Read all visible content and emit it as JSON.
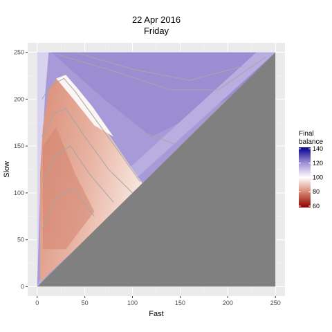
{
  "chart_data": {
    "type": "heatmap",
    "title": "22 Apr 2016",
    "subtitle": "Friday",
    "xlabel": "Fast",
    "ylabel": "Slow",
    "xlim": [
      -10,
      260
    ],
    "ylim": [
      -10,
      260
    ],
    "x_ticks": [
      0,
      50,
      100,
      150,
      200,
      250
    ],
    "y_ticks": [
      0,
      50,
      100,
      150,
      200,
      250
    ],
    "grid": true,
    "domain": "upper triangle (slow > fast), lower triangle masked grey",
    "legend": {
      "title_lines": [
        "Final",
        "balance"
      ],
      "position": "right",
      "range": [
        58,
        142
      ],
      "ticks": [
        60,
        80,
        100,
        120,
        140
      ],
      "colors": {
        "low": "#8b0000",
        "mid": "#ffffff",
        "high": "#00008b"
      },
      "midpoint": 100
    },
    "zones": [
      {
        "region": "fast small, slow 0-120",
        "approx_value": 88
      },
      {
        "region": "fast 20-70, slow 110-200",
        "approx_value": 93
      },
      {
        "region": "ridge near fast 40-80, slow 170-220",
        "approx_value": 100
      },
      {
        "region": "upper band slow 200-250",
        "approx_value": 118
      },
      {
        "region": "diagonal band near slow = fast",
        "approx_value": 110
      }
    ],
    "colors": {
      "panel_bg": "#ebebeb",
      "gridline": "#ffffff",
      "masked": "#808080",
      "contour": "#a6a6a6"
    }
  }
}
